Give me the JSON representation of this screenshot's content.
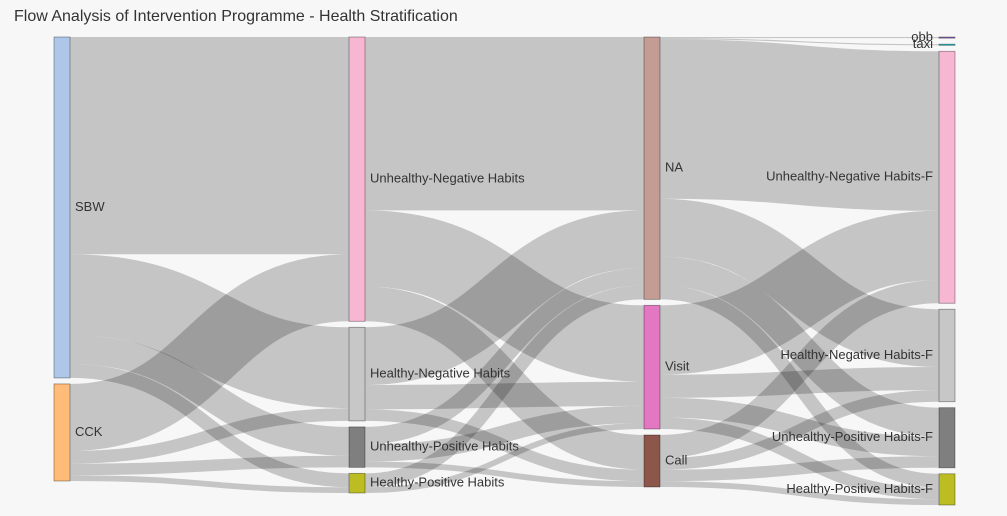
{
  "chart_data": {
    "type": "sankey",
    "title": "Flow Analysis of Intervention Programme - Health Stratification",
    "nodes": [
      {
        "name": "SBW",
        "color": "#aec7e8"
      },
      {
        "name": "CCK",
        "color": "#ffbb78"
      },
      {
        "name": "Unhealthy-Negative Habits",
        "color": "#f7b6d2"
      },
      {
        "name": "Healthy-Negative Habits",
        "color": "#c7c7c7"
      },
      {
        "name": "Unhealthy-Positive Habits",
        "color": "#7f7f7f"
      },
      {
        "name": "Healthy-Positive Habits",
        "color": "#bcbd22"
      },
      {
        "name": "NA",
        "color": "#c49c94"
      },
      {
        "name": "Visit",
        "color": "#e377c2"
      },
      {
        "name": "Call",
        "color": "#8c564b"
      },
      {
        "name": "obb",
        "color": "#9467bd"
      },
      {
        "name": "taxi",
        "color": "#17becf"
      },
      {
        "name": "Unhealthy-Negative Habits-F",
        "color": "#f7b6d2"
      },
      {
        "name": "Healthy-Negative Habits-F",
        "color": "#c7c7c7"
      },
      {
        "name": "Unhealthy-Positive Habits-F",
        "color": "#7f7f7f"
      },
      {
        "name": "Healthy-Positive Habits-F",
        "color": "#bcbd22"
      }
    ],
    "links": [
      {
        "source": 0,
        "target": 2,
        "value": 188
      },
      {
        "source": 0,
        "target": 3,
        "value": 70
      },
      {
        "source": 0,
        "target": 4,
        "value": 25
      },
      {
        "source": 0,
        "target": 5,
        "value": 12
      },
      {
        "source": 1,
        "target": 2,
        "value": 58
      },
      {
        "source": 1,
        "target": 3,
        "value": 11
      },
      {
        "source": 1,
        "target": 4,
        "value": 10
      },
      {
        "source": 1,
        "target": 5,
        "value": 5
      },
      {
        "source": 2,
        "target": 6,
        "value": 150
      },
      {
        "source": 2,
        "target": 7,
        "value": 66
      },
      {
        "source": 2,
        "target": 8,
        "value": 30
      },
      {
        "source": 3,
        "target": 6,
        "value": 50
      },
      {
        "source": 3,
        "target": 7,
        "value": 21
      },
      {
        "source": 3,
        "target": 8,
        "value": 10
      },
      {
        "source": 4,
        "target": 6,
        "value": 15
      },
      {
        "source": 4,
        "target": 7,
        "value": 15
      },
      {
        "source": 4,
        "target": 8,
        "value": 5
      },
      {
        "source": 5,
        "target": 6,
        "value": 12
      },
      {
        "source": 5,
        "target": 7,
        "value": 5
      },
      {
        "source": 6,
        "target": 9,
        "value": 1
      },
      {
        "source": 6,
        "target": 10,
        "value": 1
      },
      {
        "source": 6,
        "target": 11,
        "value": 138
      },
      {
        "source": 6,
        "target": 12,
        "value": 50
      },
      {
        "source": 6,
        "target": 13,
        "value": 25
      },
      {
        "source": 6,
        "target": 14,
        "value": 12
      },
      {
        "source": 7,
        "target": 11,
        "value": 60
      },
      {
        "source": 7,
        "target": 12,
        "value": 20
      },
      {
        "source": 7,
        "target": 13,
        "value": 17
      },
      {
        "source": 7,
        "target": 14,
        "value": 10
      },
      {
        "source": 8,
        "target": 11,
        "value": 20
      },
      {
        "source": 8,
        "target": 12,
        "value": 10
      },
      {
        "source": 8,
        "target": 13,
        "value": 10
      },
      {
        "source": 8,
        "target": 14,
        "value": 5
      }
    ]
  }
}
